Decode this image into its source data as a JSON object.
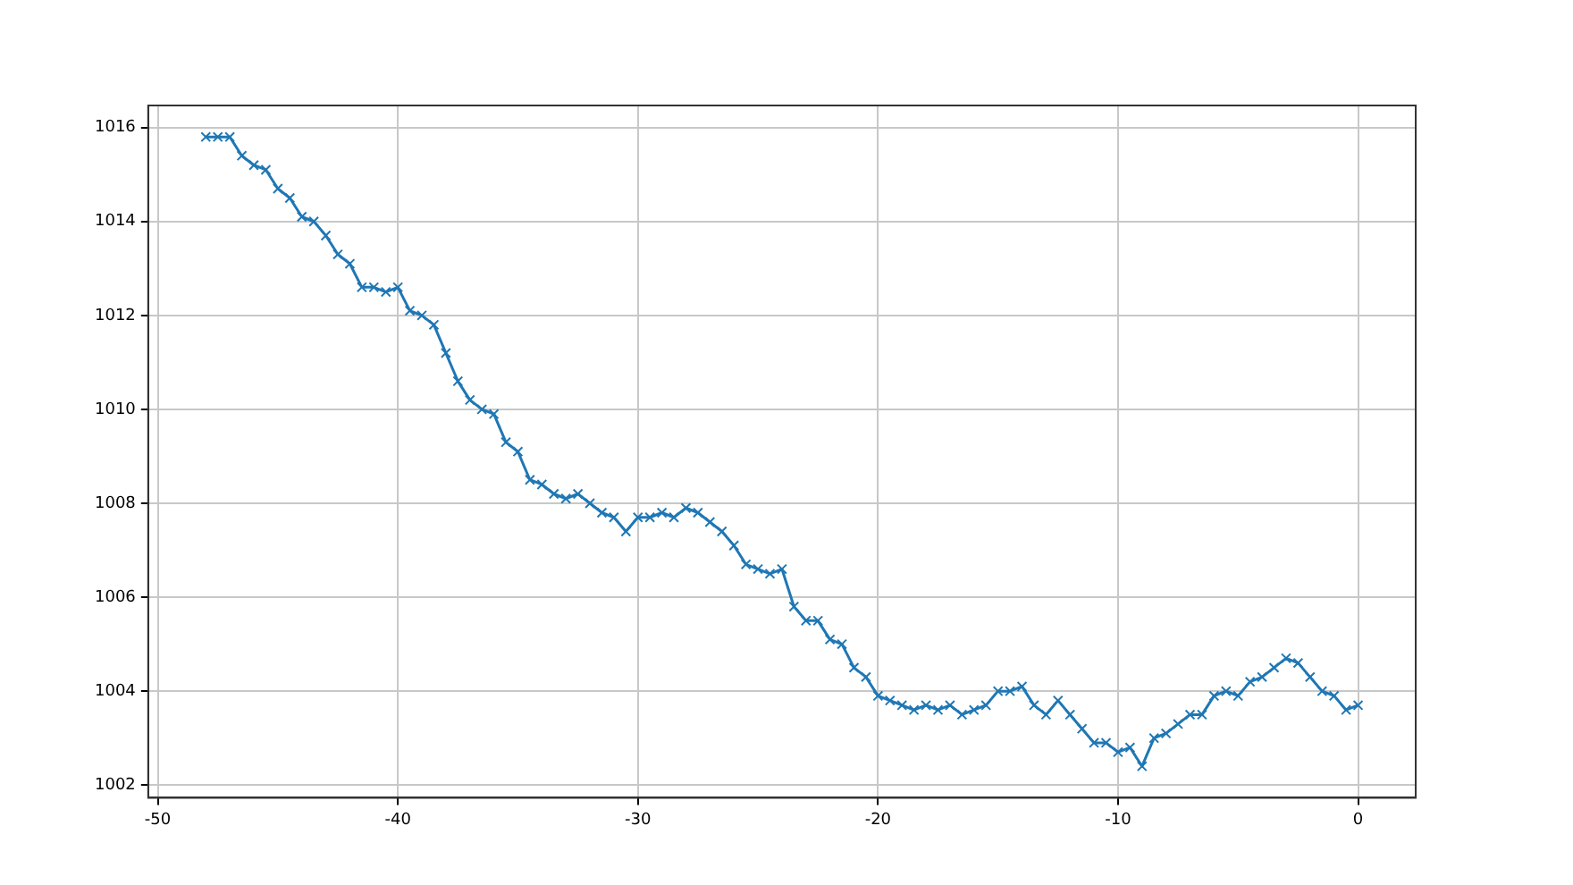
{
  "chart_data": {
    "type": "line",
    "marker": "cross",
    "line_style": "solid",
    "grid": true,
    "xlim": [
      -50.4,
      2.4
    ],
    "xticks": [
      -50,
      -40,
      -30,
      -20,
      -10,
      0
    ],
    "ylim": [
      1001.73,
      1016.47
    ],
    "yticks": [
      1002,
      1004,
      1006,
      1008,
      1010,
      1012,
      1014,
      1016
    ],
    "x": [
      -48,
      -47.5,
      -47,
      -46.5,
      -46,
      -45.5,
      -45,
      -44.5,
      -44,
      -43.5,
      -43,
      -42.5,
      -42,
      -41.5,
      -41,
      -40.5,
      -40,
      -39.5,
      -39,
      -38.5,
      -38,
      -37.5,
      -37,
      -36.5,
      -36,
      -35.5,
      -35,
      -34.5,
      -34,
      -33.5,
      -33,
      -32.5,
      -32,
      -31.5,
      -31,
      -30.5,
      -30,
      -29.5,
      -29,
      -28.5,
      -28,
      -27.5,
      -27,
      -26.5,
      -26,
      -25.5,
      -25,
      -24.5,
      -24,
      -23.5,
      -23,
      -22.5,
      -22,
      -21.5,
      -21,
      -20.5,
      -20,
      -19.5,
      -19,
      -18.5,
      -18,
      -17.5,
      -17,
      -16.5,
      -16,
      -15.5,
      -15,
      -14.5,
      -14,
      -13.5,
      -13,
      -12.5,
      -12,
      -11.5,
      -11,
      -10.5,
      -10,
      -9.5,
      -9,
      -8.5,
      -8,
      -7.5,
      -7,
      -6.5,
      -6,
      -5.5,
      -5,
      -4.5,
      -4,
      -3.5,
      -3,
      -2.5,
      -2,
      -1.5,
      -1,
      -0.5,
      0
    ],
    "series": [
      {
        "color": "#1f77b4",
        "values": [
          1015.8,
          1015.8,
          1015.8,
          1015.4,
          1015.2,
          1015.1,
          1014.7,
          1014.5,
          1014.1,
          1014.0,
          1013.7,
          1013.3,
          1013.1,
          1012.6,
          1012.6,
          1012.5,
          1012.6,
          1012.1,
          1012.0,
          1011.8,
          1011.2,
          1010.6,
          1010.2,
          1010.0,
          1009.9,
          1009.3,
          1009.1,
          1008.5,
          1008.4,
          1008.2,
          1008.1,
          1008.2,
          1008.0,
          1007.8,
          1007.7,
          1007.4,
          1007.7,
          1007.7,
          1007.8,
          1007.7,
          1007.9,
          1007.8,
          1007.6,
          1007.4,
          1007.1,
          1006.7,
          1006.6,
          1006.5,
          1006.6,
          1005.8,
          1005.5,
          1005.5,
          1005.1,
          1005.0,
          1004.5,
          1004.3,
          1003.9,
          1003.8,
          1003.7,
          1003.6,
          1003.7,
          1003.6,
          1003.7,
          1003.5,
          1003.6,
          1003.7,
          1004.0,
          1004.0,
          1004.1,
          1003.7,
          1003.5,
          1003.8,
          1003.5,
          1003.2,
          1002.9,
          1002.9,
          1002.7,
          1002.8,
          1002.4,
          1003.0,
          1003.1,
          1003.3,
          1003.5,
          1003.5,
          1003.9,
          1004.0,
          1003.9,
          1004.2,
          1004.3,
          1004.5,
          1004.7,
          1004.6,
          1004.3,
          1004.0,
          1003.9,
          1003.6,
          1003.7
        ]
      }
    ]
  }
}
